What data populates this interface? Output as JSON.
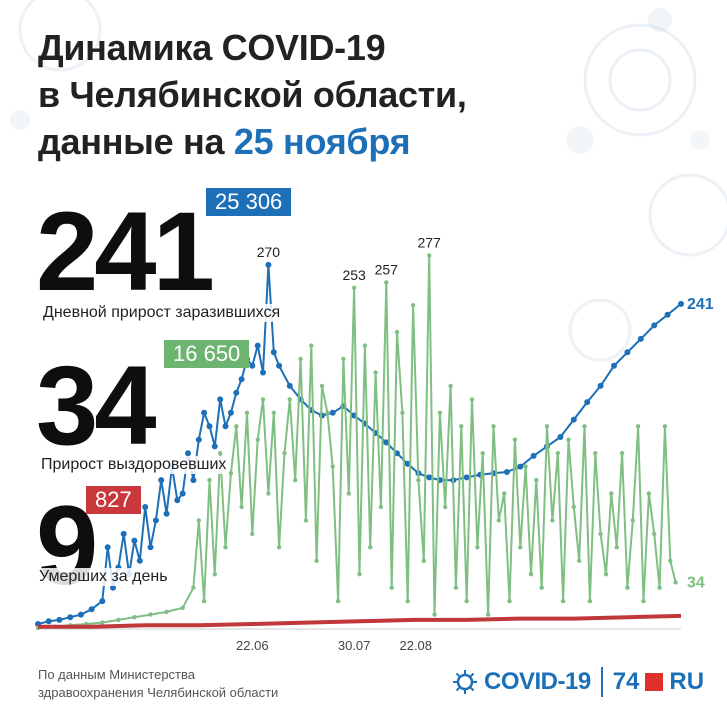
{
  "title": {
    "line1": "Динамика COVID-19",
    "line2": "в Челябинской области,",
    "line3_prefix": "данные на ",
    "line3_date": "25 ноября"
  },
  "stats": {
    "infected": {
      "value": "241",
      "total": "25 306",
      "label": "Дневной прирост заразившихся"
    },
    "recovered": {
      "value": "34",
      "total": "16 650",
      "label": "Прирост выздоровевших"
    },
    "deaths": {
      "value": "9",
      "total": "827",
      "label": "Умерших за день"
    }
  },
  "colors": {
    "infected": "#1d6fb8",
    "recovered": "#7fbf82",
    "deaths": "#c0383a",
    "infected_badge": "#1d6fb8",
    "recovered_badge": "#6db471",
    "deaths_badge": "#c9393b"
  },
  "footer": {
    "source_line1": "По данным Министерства",
    "source_line2": "здравоохранения Челябинской области",
    "logo_covid": "COVID-19",
    "logo_74": "74",
    "logo_ru": "RU"
  },
  "chart_data": {
    "type": "line",
    "xlim": [
      0,
      240
    ],
    "ylim": [
      0,
      290
    ],
    "x_ticks": [
      {
        "x": 80,
        "label": "22.06"
      },
      {
        "x": 118,
        "label": "30.07"
      },
      {
        "x": 141,
        "label": "22.08"
      }
    ],
    "annotations": [
      {
        "x": 86,
        "y": 270,
        "label": "270"
      },
      {
        "x": 118,
        "y": 253,
        "label": "253"
      },
      {
        "x": 130,
        "y": 257,
        "label": "257"
      },
      {
        "x": 146,
        "y": 277,
        "label": "277"
      },
      {
        "x": 240,
        "y": 241,
        "label": "241"
      },
      {
        "x": 240,
        "y": 34,
        "label": "34"
      }
    ],
    "series": [
      {
        "key": "infected",
        "points": [
          [
            0,
            3
          ],
          [
            4,
            5
          ],
          [
            8,
            6
          ],
          [
            12,
            8
          ],
          [
            16,
            10
          ],
          [
            20,
            14
          ],
          [
            24,
            20
          ],
          [
            26,
            60
          ],
          [
            28,
            30
          ],
          [
            30,
            45
          ],
          [
            32,
            70
          ],
          [
            34,
            40
          ],
          [
            36,
            65
          ],
          [
            38,
            50
          ],
          [
            40,
            90
          ],
          [
            42,
            60
          ],
          [
            44,
            80
          ],
          [
            46,
            110
          ],
          [
            48,
            85
          ],
          [
            50,
            120
          ],
          [
            52,
            95
          ],
          [
            54,
            100
          ],
          [
            56,
            130
          ],
          [
            58,
            110
          ],
          [
            60,
            140
          ],
          [
            62,
            160
          ],
          [
            64,
            150
          ],
          [
            66,
            135
          ],
          [
            68,
            170
          ],
          [
            70,
            150
          ],
          [
            72,
            160
          ],
          [
            74,
            175
          ],
          [
            76,
            185
          ],
          [
            78,
            200
          ],
          [
            80,
            195
          ],
          [
            82,
            210
          ],
          [
            84,
            190
          ],
          [
            86,
            270
          ],
          [
            88,
            205
          ],
          [
            90,
            195
          ],
          [
            94,
            180
          ],
          [
            98,
            170
          ],
          [
            102,
            162
          ],
          [
            106,
            158
          ],
          [
            110,
            160
          ],
          [
            114,
            165
          ],
          [
            118,
            158
          ],
          [
            122,
            152
          ],
          [
            126,
            145
          ],
          [
            130,
            138
          ],
          [
            134,
            130
          ],
          [
            138,
            122
          ],
          [
            142,
            115
          ],
          [
            146,
            112
          ],
          [
            150,
            110
          ],
          [
            155,
            110
          ],
          [
            160,
            112
          ],
          [
            165,
            114
          ],
          [
            170,
            115
          ],
          [
            175,
            116
          ],
          [
            180,
            120
          ],
          [
            185,
            128
          ],
          [
            190,
            135
          ],
          [
            195,
            142
          ],
          [
            200,
            155
          ],
          [
            205,
            168
          ],
          [
            210,
            180
          ],
          [
            215,
            195
          ],
          [
            220,
            205
          ],
          [
            225,
            215
          ],
          [
            230,
            225
          ],
          [
            235,
            233
          ],
          [
            240,
            241
          ]
        ]
      },
      {
        "key": "recovered",
        "points": [
          [
            0,
            0
          ],
          [
            6,
            1
          ],
          [
            12,
            2
          ],
          [
            18,
            3
          ],
          [
            24,
            4
          ],
          [
            30,
            6
          ],
          [
            36,
            8
          ],
          [
            42,
            10
          ],
          [
            48,
            12
          ],
          [
            54,
            15
          ],
          [
            58,
            30
          ],
          [
            60,
            80
          ],
          [
            62,
            20
          ],
          [
            64,
            110
          ],
          [
            66,
            40
          ],
          [
            68,
            130
          ],
          [
            70,
            60
          ],
          [
            72,
            115
          ],
          [
            74,
            150
          ],
          [
            76,
            90
          ],
          [
            78,
            160
          ],
          [
            80,
            70
          ],
          [
            82,
            140
          ],
          [
            84,
            170
          ],
          [
            86,
            100
          ],
          [
            88,
            160
          ],
          [
            90,
            60
          ],
          [
            92,
            130
          ],
          [
            94,
            170
          ],
          [
            96,
            110
          ],
          [
            98,
            200
          ],
          [
            100,
            80
          ],
          [
            102,
            210
          ],
          [
            104,
            50
          ],
          [
            106,
            180
          ],
          [
            108,
            160
          ],
          [
            110,
            120
          ],
          [
            112,
            20
          ],
          [
            114,
            200
          ],
          [
            116,
            100
          ],
          [
            118,
            253
          ],
          [
            120,
            40
          ],
          [
            122,
            210
          ],
          [
            124,
            60
          ],
          [
            126,
            190
          ],
          [
            128,
            90
          ],
          [
            130,
            257
          ],
          [
            132,
            30
          ],
          [
            134,
            220
          ],
          [
            136,
            160
          ],
          [
            138,
            20
          ],
          [
            140,
            240
          ],
          [
            142,
            110
          ],
          [
            144,
            50
          ],
          [
            146,
            277
          ],
          [
            148,
            10
          ],
          [
            150,
            160
          ],
          [
            152,
            90
          ],
          [
            154,
            180
          ],
          [
            156,
            30
          ],
          [
            158,
            150
          ],
          [
            160,
            20
          ],
          [
            162,
            170
          ],
          [
            164,
            60
          ],
          [
            166,
            130
          ],
          [
            168,
            10
          ],
          [
            170,
            150
          ],
          [
            172,
            80
          ],
          [
            174,
            100
          ],
          [
            176,
            20
          ],
          [
            178,
            140
          ],
          [
            180,
            60
          ],
          [
            182,
            120
          ],
          [
            184,
            40
          ],
          [
            186,
            110
          ],
          [
            188,
            30
          ],
          [
            190,
            150
          ],
          [
            192,
            80
          ],
          [
            194,
            130
          ],
          [
            196,
            20
          ],
          [
            198,
            140
          ],
          [
            200,
            90
          ],
          [
            202,
            50
          ],
          [
            204,
            150
          ],
          [
            206,
            20
          ],
          [
            208,
            130
          ],
          [
            210,
            70
          ],
          [
            212,
            40
          ],
          [
            214,
            100
          ],
          [
            216,
            60
          ],
          [
            218,
            130
          ],
          [
            220,
            30
          ],
          [
            222,
            80
          ],
          [
            224,
            150
          ],
          [
            226,
            20
          ],
          [
            228,
            100
          ],
          [
            230,
            70
          ],
          [
            232,
            30
          ],
          [
            234,
            150
          ],
          [
            236,
            50
          ],
          [
            238,
            34
          ]
        ]
      },
      {
        "key": "deaths",
        "points": [
          [
            0,
            1
          ],
          [
            20,
            1
          ],
          [
            40,
            2
          ],
          [
            60,
            2
          ],
          [
            80,
            3
          ],
          [
            100,
            4
          ],
          [
            120,
            5
          ],
          [
            140,
            6
          ],
          [
            160,
            6
          ],
          [
            180,
            7
          ],
          [
            200,
            7
          ],
          [
            220,
            8
          ],
          [
            240,
            9
          ]
        ]
      }
    ]
  }
}
